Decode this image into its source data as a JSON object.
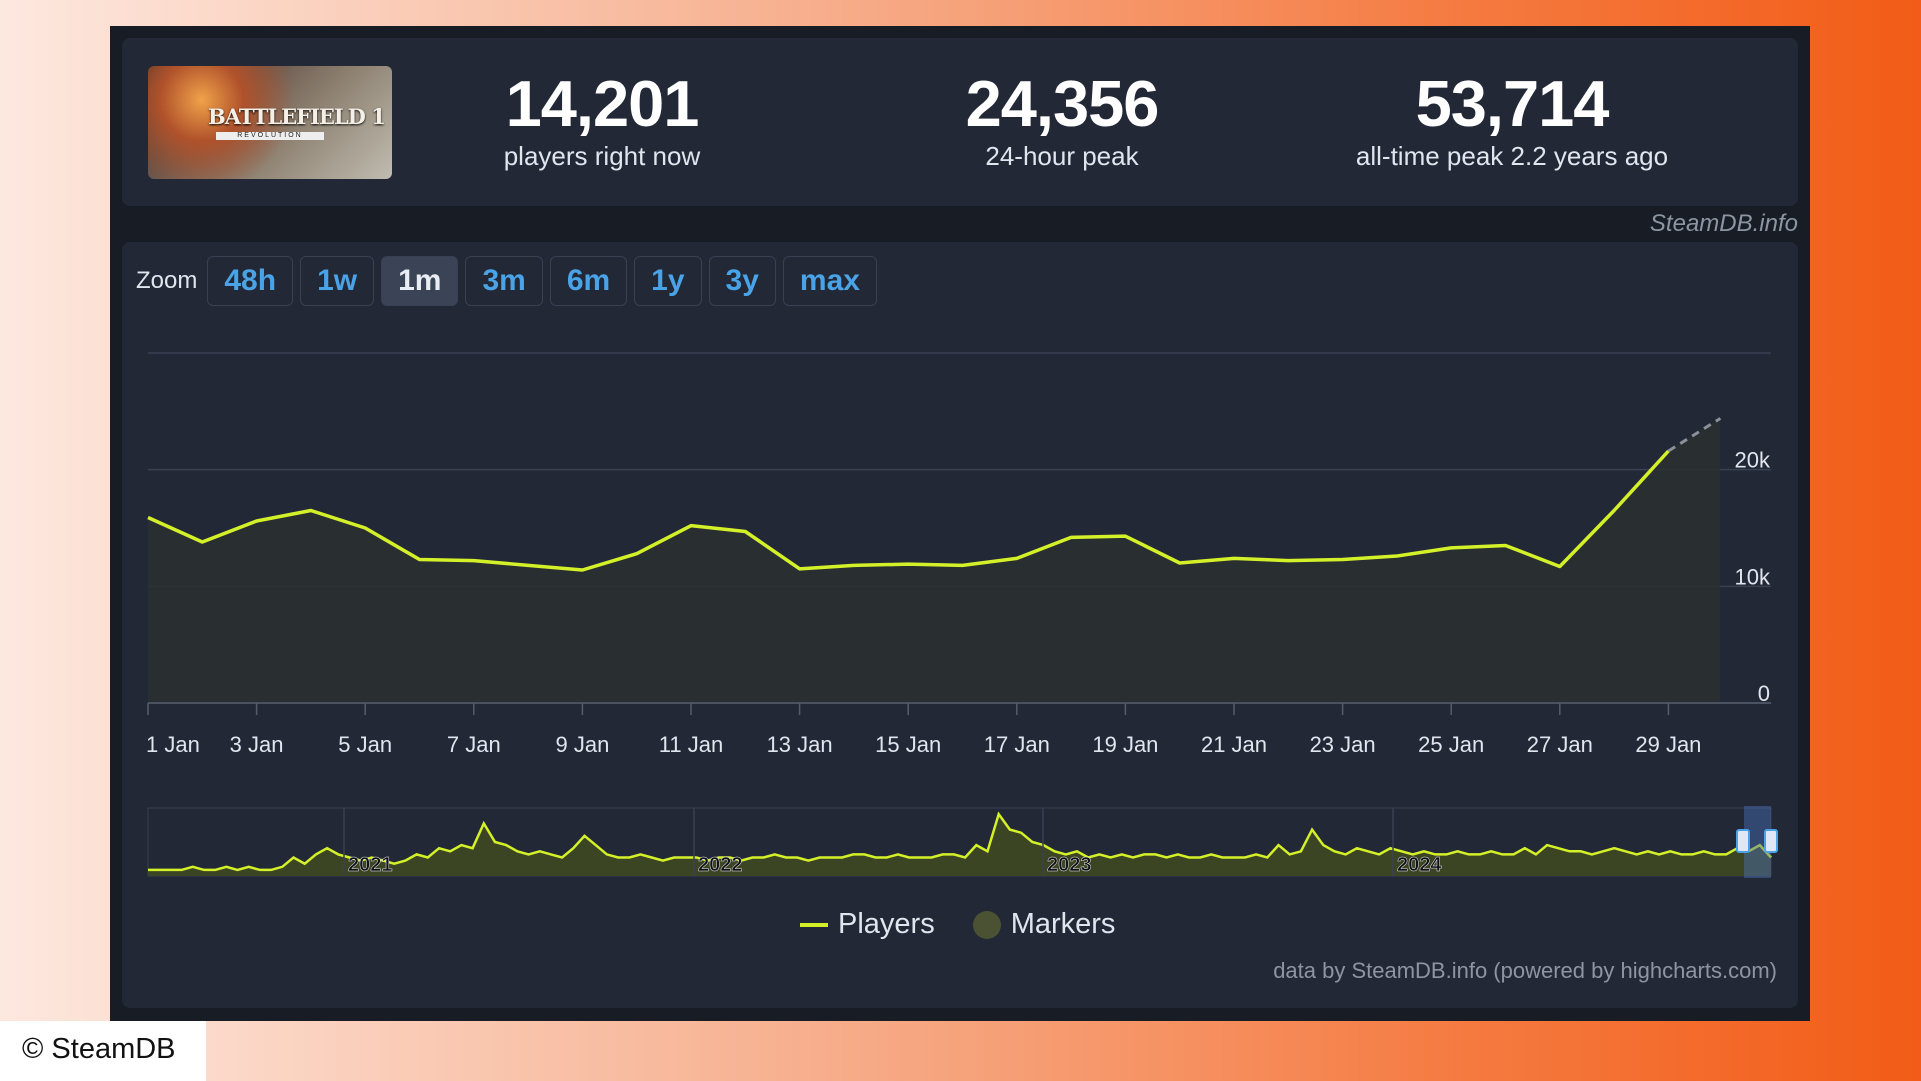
{
  "game": {
    "thumbnail_text": "BATTLEFIELD 1",
    "thumbnail_subtext": "REVOLUTION"
  },
  "stats": [
    {
      "value": "14,201",
      "label": "players right now"
    },
    {
      "value": "24,356",
      "label": "24-hour peak"
    },
    {
      "value": "53,714",
      "label": "all-time peak 2.2 years ago"
    }
  ],
  "watermark": "SteamDB.info",
  "zoom": {
    "label": "Zoom",
    "options": [
      "48h",
      "1w",
      "1m",
      "3m",
      "6m",
      "1y",
      "3y",
      "max"
    ],
    "active": "1m"
  },
  "legend": {
    "players": "Players",
    "markers": "Markers"
  },
  "credits": "data by SteamDB.info (powered by highcharts.com)",
  "copyright": "© SteamDB",
  "colors": {
    "line": "#d4f029",
    "grid": "#3a4152",
    "axis_text": "#e1e5ee",
    "background": "#222836"
  },
  "chart_data": [
    {
      "type": "line",
      "title": "",
      "xlabel": "",
      "ylabel": "",
      "series": [
        {
          "name": "Players",
          "values": [
            15900,
            13800,
            15600,
            16500,
            15000,
            12300,
            12200,
            11800,
            11400,
            12800,
            15200,
            14700,
            11500,
            11800,
            11900,
            11800,
            12400,
            14200,
            14300,
            12000,
            12400,
            12200,
            12300,
            12600,
            13300,
            13500,
            11700,
            16500,
            21600
          ]
        }
      ],
      "projection": [
        21600,
        24400
      ],
      "x": [
        "1 Jan",
        "2 Jan",
        "3 Jan",
        "4 Jan",
        "5 Jan",
        "6 Jan",
        "7 Jan",
        "8 Jan",
        "9 Jan",
        "10 Jan",
        "11 Jan",
        "12 Jan",
        "13 Jan",
        "14 Jan",
        "15 Jan",
        "16 Jan",
        "17 Jan",
        "18 Jan",
        "19 Jan",
        "20 Jan",
        "21 Jan",
        "22 Jan",
        "23 Jan",
        "24 Jan",
        "25 Jan",
        "26 Jan",
        "27 Jan",
        "28 Jan",
        "29 Jan"
      ],
      "x_tick_labels": [
        "1 Jan",
        "3 Jan",
        "5 Jan",
        "7 Jan",
        "9 Jan",
        "11 Jan",
        "13 Jan",
        "15 Jan",
        "17 Jan",
        "19 Jan",
        "21 Jan",
        "23 Jan",
        "25 Jan",
        "27 Jan",
        "29 Jan"
      ],
      "y_tick_labels": [
        "0",
        "10k",
        "20k"
      ],
      "ylim": [
        0,
        30000
      ],
      "grid": true
    },
    {
      "type": "area",
      "name": "navigator",
      "x_tick_labels": [
        "2021",
        "2022",
        "2023",
        "2024"
      ],
      "values": [
        1,
        1,
        1,
        1,
        2,
        1,
        1,
        2,
        1,
        2,
        1,
        1,
        2,
        5,
        3,
        6,
        8,
        6,
        5,
        4,
        5,
        4,
        3,
        4,
        6,
        5,
        8,
        7,
        9,
        8,
        16,
        10,
        9,
        7,
        6,
        7,
        6,
        5,
        8,
        12,
        9,
        6,
        5,
        5,
        6,
        5,
        4,
        5,
        5,
        5,
        4,
        5,
        5,
        4,
        5,
        5,
        6,
        5,
        5,
        4,
        5,
        5,
        5,
        6,
        6,
        5,
        5,
        6,
        5,
        5,
        5,
        6,
        6,
        5,
        9,
        7,
        19,
        14,
        13,
        10,
        9,
        7,
        6,
        7,
        5,
        6,
        5,
        6,
        5,
        6,
        6,
        5,
        6,
        5,
        5,
        6,
        5,
        5,
        5,
        6,
        5,
        9,
        6,
        7,
        14,
        9,
        7,
        6,
        8,
        7,
        6,
        8,
        7,
        6,
        7,
        6,
        6,
        7,
        6,
        6,
        7,
        6,
        6,
        8,
        6,
        9,
        8,
        7,
        7,
        6,
        7,
        8,
        7,
        6,
        7,
        6,
        7,
        6,
        6,
        7,
        6,
        6,
        8,
        7,
        9,
        5
      ]
    }
  ]
}
